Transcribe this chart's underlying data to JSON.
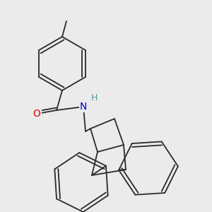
{
  "background_color": "#ebebeb",
  "bond_color": "#2a2a2a",
  "bond_width": 1.3,
  "atom_colors": {
    "O": "#dd0000",
    "N": "#0000cc",
    "H": "#5a9a9a",
    "C": "#2a2a2a"
  },
  "font_size_atom": 10,
  "font_size_h": 9,
  "figsize": [
    3.0,
    3.0
  ],
  "dpi": 100
}
